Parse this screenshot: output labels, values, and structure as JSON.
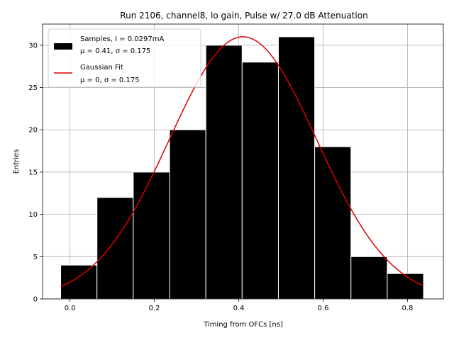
{
  "chart_data": {
    "type": "bar",
    "title": "Run 2106, channel8, lo gain, Pulse w/ 27.0 dB Attenuation",
    "xlabel": "Timing from OFCs [ns]",
    "ylabel": "Entries",
    "xlim": [
      -0.065,
      0.885
    ],
    "ylim": [
      0,
      32.5
    ],
    "xticks": [
      "0.0",
      "0.2",
      "0.4",
      "0.6",
      "0.8"
    ],
    "yticks": [
      "0",
      "5",
      "10",
      "15",
      "20",
      "25",
      "30"
    ],
    "grid": true,
    "legend_placement": "top-left",
    "histogram": {
      "name": "Samples, I = 0.0297mA",
      "name_line2": "μ = 0.41, σ = 0.175",
      "color": "#000000",
      "edge_color": "#ffffff",
      "bin_edges": [
        -0.022,
        0.064,
        0.15,
        0.236,
        0.322,
        0.408,
        0.494,
        0.58,
        0.666,
        0.752,
        0.838
      ],
      "counts": [
        4,
        12,
        15,
        20,
        30,
        28,
        31,
        18,
        5,
        3
      ]
    },
    "fit": {
      "name": "Gaussian Fit",
      "name_line2": "μ = 0, σ = 0.175",
      "color": "#dd0000",
      "amplitude": 31,
      "mu": 0.41,
      "sigma": 0.175,
      "x_range": [
        -0.022,
        0.838
      ]
    }
  }
}
